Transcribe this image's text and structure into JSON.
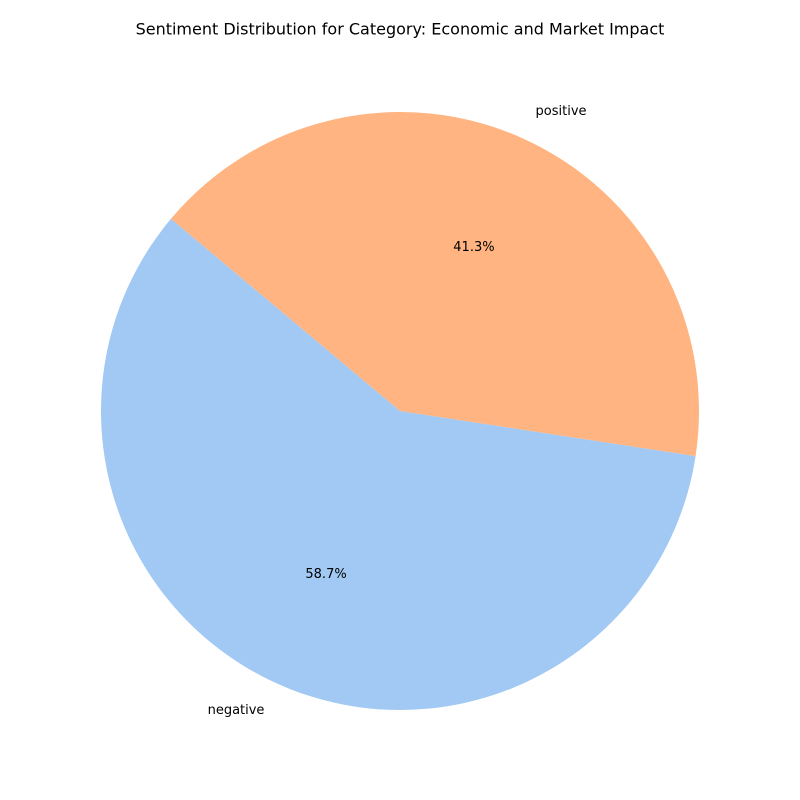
{
  "chart_data": {
    "type": "pie",
    "title": "Sentiment Distribution for Category: Economic and Market Impact",
    "slices": [
      {
        "label": "negative",
        "value": 58.7,
        "pct_text": "58.7%",
        "color": "#a1c9f4"
      },
      {
        "label": "positive",
        "value": 41.3,
        "pct_text": "41.3%",
        "color": "#ffb482"
      }
    ],
    "start_angle_deg": 140,
    "direction": "counterclockwise"
  }
}
